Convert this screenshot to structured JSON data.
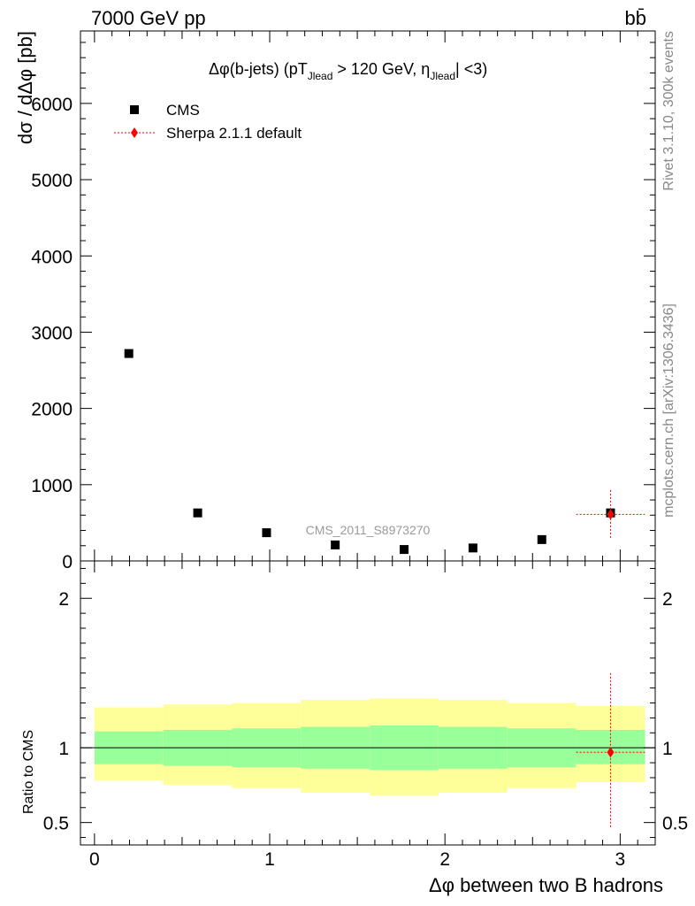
{
  "header": {
    "left_label": "7000 GeV pp",
    "right_label": "bb̄"
  },
  "side_labels": {
    "rivet": "Rivet 3.1.10,  300k events",
    "mcplots": "mcplots.cern.ch [arXiv:1306.3436]"
  },
  "chart_data": {
    "type": "scatter",
    "title": "Δφ(b-jets) (pT_Jlead > 120 GeV, η_Jlead < 3)",
    "title_parts": {
      "pre": "Δφ(b-jets) (pT",
      "sub1": "Jlead",
      "mid": " >  120 GeV, η",
      "sub2": "Jlead",
      "post": "| <3)"
    },
    "watermark": "CMS_2011_S8973270",
    "xlabel": "Δφ between two B hadrons",
    "ylabel": "dσ / dΔφ [pb]",
    "ratio_ylabel": "Ratio to CMS",
    "xlim": [
      -0.08,
      3.2
    ],
    "ylim": [
      0,
      6950
    ],
    "ratio_ylim": [
      0.35,
      2.25
    ],
    "x_ticks": [
      0,
      1,
      2,
      3
    ],
    "y_ticks": [
      0,
      1000,
      2000,
      3000,
      4000,
      5000,
      6000
    ],
    "ratio_ticks": [
      0.5,
      1,
      2
    ],
    "legend_position": "top-left",
    "bin_edges": [
      0,
      0.393,
      0.785,
      1.178,
      1.571,
      1.963,
      2.356,
      2.749,
      3.142
    ],
    "series": [
      {
        "name": "CMS",
        "x": [
          0.196,
          0.589,
          0.982,
          1.374,
          1.767,
          2.16,
          2.553,
          2.945
        ],
        "y": [
          2720,
          630,
          370,
          210,
          150,
          170,
          280,
          630
        ],
        "color": "#000000",
        "marker": "square"
      },
      {
        "name": "Sherpa 2.1.1 default",
        "x": [
          2.945
        ],
        "y": [
          610
        ],
        "yerr_low": [
          320
        ],
        "yerr_high": [
          320
        ],
        "xerr": [
          0.196
        ],
        "color": "#ff0000",
        "marker": "diamond"
      }
    ],
    "ratio": {
      "reference": "CMS",
      "band_inner": [
        [
          0.89,
          1.11
        ],
        [
          0.88,
          1.12
        ],
        [
          0.87,
          1.13
        ],
        [
          0.86,
          1.14
        ],
        [
          0.85,
          1.15
        ],
        [
          0.86,
          1.14
        ],
        [
          0.87,
          1.13
        ],
        [
          0.89,
          1.12
        ]
      ],
      "band_outer": [
        [
          0.78,
          1.27
        ],
        [
          0.75,
          1.29
        ],
        [
          0.73,
          1.3
        ],
        [
          0.7,
          1.32
        ],
        [
          0.68,
          1.33
        ],
        [
          0.7,
          1.32
        ],
        [
          0.73,
          1.3
        ],
        [
          0.77,
          1.28
        ]
      ],
      "band_inner_color": "#99ff99",
      "band_outer_color": "#ffff99",
      "points": [
        {
          "series": "Sherpa 2.1.1 default",
          "x": 2.945,
          "y": 0.97,
          "yerr_low": 0.5,
          "yerr_high": 0.53,
          "xerr": 0.196
        }
      ]
    }
  }
}
